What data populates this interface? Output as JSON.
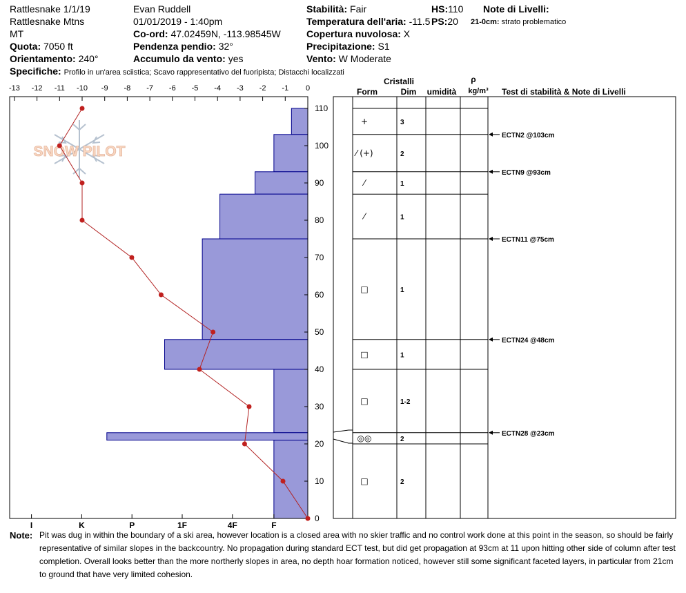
{
  "header": {
    "site": "Rattlesnake 1/1/19",
    "area": "Rattlesnake Mtns",
    "state": "MT",
    "elev_label": "Quota:",
    "elev_value": "7050 ft",
    "aspect_label": "Orientamento:",
    "aspect_value": "240°",
    "specifics_label": "Specifiche:",
    "specifics_value": "Profilo in un'area sciistica; Scavo rappresentativo del fuoripista; Distacchi localizzati",
    "observer": "Evan Ruddell",
    "datetime": "01/01/2019 - 1:40pm",
    "coord_label": "Co-ord:",
    "coord_value": "47.02459N, -113.98545W",
    "slope_label": "Pendenza pendio:",
    "slope_value": "32°",
    "wind_load_label": "Accumulo da vento:",
    "wind_load_value": "yes",
    "stability_label": "Stabilità:",
    "stability_value": "Fair",
    "air_temp_label": "Temperatura dell'aria:",
    "air_temp_value": "-11.5",
    "sky_label": "Copertura nuvolosa:",
    "sky_value": "X",
    "precip_label": "Precipitazione:",
    "precip_value": "S1",
    "wind_label": "Vento:",
    "wind_value": "W Moderate",
    "hs_label": "HS:",
    "hs_value": "110",
    "ps_label": "PS:",
    "ps_value": "20",
    "layer_notes_label": "Note di Livelli:",
    "layer_note_depth": "21-0cm:",
    "layer_note_text": "strato problematico"
  },
  "watermark": "SNOW PILOT",
  "columns": {
    "crystals": "Cristalli",
    "form": "Form",
    "size": "Dim",
    "moisture": "umidità",
    "rho": "ρ",
    "density_unit": "kg/m³",
    "tests": "Test di stabilità & Note di Livelli"
  },
  "note": {
    "label": "Note:",
    "text": "Pit was dug in within the boundary of a ski area, however location is a closed area with no skier traffic and no control work done at this point in the season, so should be fairly representative of similar slopes in the backcountry. No propagation during standard ECT test, but did get propagation at 93cm at 11 upon hitting other side of column after test completion. Overall looks better than the more northerly slopes in area, no depth hoar formation noticed, however still some significant faceted layers, in particular from 21cm to ground that have very limited cohesion."
  },
  "colors": {
    "hardness_fill": "#9999d9",
    "hardness_stroke": "#00008b",
    "temp_line": "#b22222",
    "temp_point": "#c0201e"
  },
  "chart_data": {
    "type": "bar",
    "temp_axis": {
      "ticks": [
        -13,
        -12,
        -11,
        -10,
        -9,
        -8,
        -7,
        -6,
        -5,
        -4,
        -3,
        -2,
        -1,
        0
      ],
      "range": [
        -13,
        0
      ]
    },
    "hardness_axis": {
      "ticks": [
        "I",
        "K",
        "P",
        "1F",
        "4F",
        "F"
      ]
    },
    "depth_axis": {
      "ticks": [
        0,
        10,
        20,
        30,
        40,
        50,
        60,
        70,
        80,
        90,
        100,
        110
      ],
      "range": [
        0,
        110
      ]
    },
    "hardness_layers": [
      {
        "top": 110,
        "bottom": 103,
        "hardness": "F-"
      },
      {
        "top": 103,
        "bottom": 93,
        "hardness": "F+"
      },
      {
        "top": 93,
        "bottom": 87,
        "hardness": "4F-"
      },
      {
        "top": 87,
        "bottom": 75,
        "hardness": "4F+"
      },
      {
        "top": 75,
        "bottom": 48,
        "hardness": "1F-"
      },
      {
        "top": 48,
        "bottom": 40,
        "hardness": "1F"
      },
      {
        "top": 40,
        "bottom": 23,
        "hardness": "F+"
      },
      {
        "top": 23,
        "bottom": 21,
        "hardness": "P"
      },
      {
        "top": 21,
        "bottom": 0,
        "hardness": "F+"
      }
    ],
    "hardness_values": [
      0.65,
      1.35,
      2.1,
      3.5,
      4.2,
      5.7,
      1.35,
      8.0,
      1.35
    ],
    "temperature_profile": [
      {
        "depth": 110,
        "temp": -10
      },
      {
        "depth": 100,
        "temp": -11
      },
      {
        "depth": 90,
        "temp": -10
      },
      {
        "depth": 80,
        "temp": -10
      },
      {
        "depth": 70,
        "temp": -7.8
      },
      {
        "depth": 60,
        "temp": -6.5
      },
      {
        "depth": 50,
        "temp": -4.2
      },
      {
        "depth": 40,
        "temp": -4.8
      },
      {
        "depth": 30,
        "temp": -2.6
      },
      {
        "depth": 20,
        "temp": -2.8
      },
      {
        "depth": 10,
        "temp": -1.1
      },
      {
        "depth": 0,
        "temp": 0
      }
    ],
    "grain_layers": [
      {
        "top": 110,
        "bottom": 103,
        "form": "+",
        "size": "3"
      },
      {
        "top": 103,
        "bottom": 93,
        "form": "⁄ (+)",
        "size": "2"
      },
      {
        "top": 93,
        "bottom": 87,
        "form": "⁄",
        "size": "1"
      },
      {
        "top": 87,
        "bottom": 75,
        "form": "⁄",
        "size": "1"
      },
      {
        "top": 75,
        "bottom": 48,
        "form": "□",
        "size": "1"
      },
      {
        "top": 48,
        "bottom": 40,
        "form": "□",
        "size": "1"
      },
      {
        "top": 40,
        "bottom": 23,
        "form": "□",
        "size": "1-2"
      },
      {
        "top": 23,
        "bottom": 20,
        "form": "◎◎",
        "size": "2"
      },
      {
        "top": 20,
        "bottom": 0,
        "form": "□",
        "size": "2"
      }
    ],
    "stability_tests": [
      {
        "depth": 103,
        "label": "ECTN2 @103cm"
      },
      {
        "depth": 93,
        "label": "ECTN9 @93cm"
      },
      {
        "depth": 75,
        "label": "ECTN11 @75cm"
      },
      {
        "depth": 48,
        "label": "ECTN24 @48cm"
      },
      {
        "depth": 23,
        "label": "ECTN28 @23cm"
      }
    ]
  }
}
